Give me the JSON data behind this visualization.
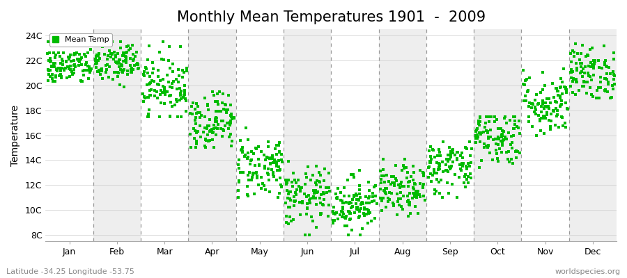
{
  "title": "Monthly Mean Temperatures 1901  -  2009",
  "ylabel": "Temperature",
  "xlabel": "",
  "months": [
    "Jan",
    "Feb",
    "Mar",
    "Apr",
    "May",
    "Jun",
    "Jul",
    "Aug",
    "Sep",
    "Oct",
    "Nov",
    "Dec"
  ],
  "month_means": [
    21.5,
    21.8,
    20.0,
    17.2,
    13.5,
    11.0,
    10.5,
    11.5,
    13.5,
    16.0,
    18.5,
    21.0
  ],
  "month_stds": [
    0.8,
    0.9,
    1.3,
    1.2,
    1.3,
    1.2,
    1.1,
    1.0,
    1.1,
    1.2,
    1.3,
    1.1
  ],
  "month_mins": [
    20.3,
    19.5,
    17.5,
    15.0,
    11.0,
    8.0,
    8.0,
    9.0,
    11.0,
    13.0,
    16.0,
    19.0
  ],
  "month_maxs": [
    23.5,
    23.5,
    23.5,
    19.5,
    17.0,
    14.5,
    15.0,
    14.5,
    15.5,
    17.5,
    22.5,
    23.5
  ],
  "n_years": 109,
  "ylim": [
    7.5,
    24.5
  ],
  "yticks": [
    8,
    10,
    12,
    14,
    16,
    18,
    20,
    22,
    24
  ],
  "ytick_labels": [
    "8C",
    "10C",
    "12C",
    "14C",
    "16C",
    "18C",
    "20C",
    "22C",
    "24C"
  ],
  "dot_color": "#00BB00",
  "dot_size": 5,
  "dot_marker": "s",
  "bg_color_light": "#FFFFFF",
  "bg_color_dark": "#EEEEEE",
  "vline_color": "#999999",
  "legend_label": "Mean Temp",
  "bottom_left": "Latitude -34.25 Longitude -53.75",
  "bottom_right": "worldspecies.org",
  "title_fontsize": 15,
  "label_fontsize": 10,
  "tick_fontsize": 9
}
